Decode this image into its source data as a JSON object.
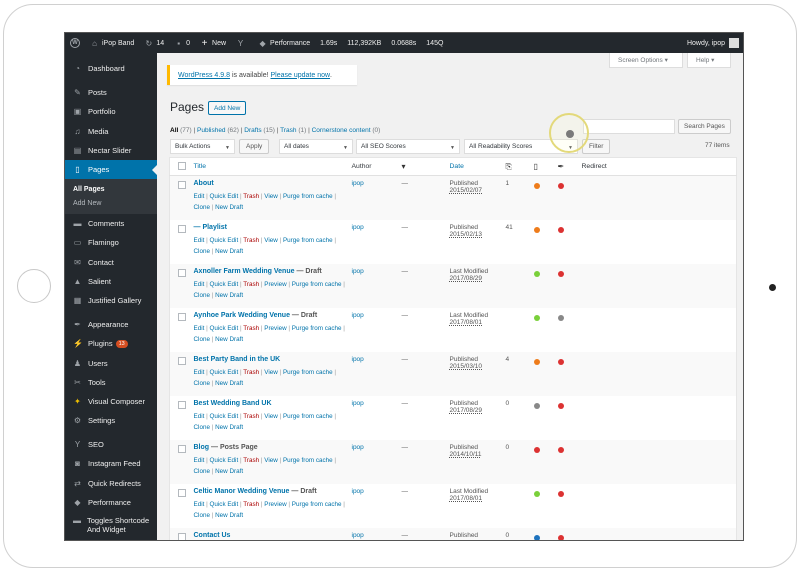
{
  "adminbar": {
    "site_name": "iPop Band",
    "updates_count": "14",
    "comments_count": "0",
    "new_label": "New",
    "performance_label": "Performance",
    "perf_time": "1.69s",
    "perf_memory": "112,392KB",
    "perf_query_time": "0.0688s",
    "perf_queries": "145Q",
    "howdy": "Howdy, ipop"
  },
  "sidebar": {
    "items": [
      {
        "label": "Dashboard",
        "icon": "dashboard-icon"
      },
      {
        "label": "Posts",
        "icon": "pin-icon"
      },
      {
        "label": "Portfolio",
        "icon": "portfolio-icon"
      },
      {
        "label": "Media",
        "icon": "media-icon"
      },
      {
        "label": "Nectar Slider",
        "icon": "slider-icon"
      },
      {
        "label": "Pages",
        "icon": "pages-icon"
      },
      {
        "label": "Comments",
        "icon": "comments-icon"
      },
      {
        "label": "Flamingo",
        "icon": "flamingo-icon"
      },
      {
        "label": "Contact",
        "icon": "mail-icon"
      },
      {
        "label": "Salient",
        "icon": "salient-icon"
      },
      {
        "label": "Justified Gallery",
        "icon": "gallery-icon"
      },
      {
        "label": "Appearance",
        "icon": "brush-icon"
      },
      {
        "label": "Plugins",
        "icon": "plugin-icon",
        "badge": "13"
      },
      {
        "label": "Users",
        "icon": "users-icon"
      },
      {
        "label": "Tools",
        "icon": "tools-icon"
      },
      {
        "label": "Visual Composer",
        "icon": "composer-icon"
      },
      {
        "label": "Settings",
        "icon": "settings-icon"
      },
      {
        "label": "SEO",
        "icon": "seo-icon"
      },
      {
        "label": "Instagram Feed",
        "icon": "instagram-icon"
      },
      {
        "label": "Quick Redirects",
        "icon": "redirect-icon"
      },
      {
        "label": "Performance",
        "icon": "performance-icon"
      },
      {
        "label": "Toggles Shortcode And Widget",
        "icon": "toggle-icon"
      }
    ],
    "submenu": [
      "All Pages",
      "Add New"
    ]
  },
  "screen_options": {
    "screen_label": "Screen Options ▾",
    "help_label": "Help ▾"
  },
  "notice": {
    "version_link": "WordPress 4.9.8",
    "middle": " is available! ",
    "update_link": "Please update now",
    "end": "."
  },
  "page": {
    "title": "Pages",
    "add_new": "Add New"
  },
  "filters": {
    "all": "All",
    "all_count": "(77)",
    "published": "Published",
    "published_count": "(62)",
    "drafts": "Drafts",
    "drafts_count": "(15)",
    "trash": "Trash",
    "trash_count": "(1)",
    "cornerstone": "Cornerstone content",
    "cornerstone_count": "(0)"
  },
  "toolbar": {
    "bulk_actions": "Bulk Actions",
    "apply": "Apply",
    "all_dates": "All dates",
    "seo_scores": "All SEO Scores",
    "readability_scores": "All Readability Scores",
    "filter": "Filter",
    "items_count": "77 items",
    "search_button": "Search Pages"
  },
  "table": {
    "headers": {
      "title": "Title",
      "author": "Author",
      "date": "Date",
      "redirect": "Redirect"
    },
    "rows": [
      {
        "title": "About",
        "state": "",
        "author": "ipop",
        "comments": "—",
        "date_status": "Published",
        "date": "2015/02/07",
        "links": "1",
        "seo_color": "#ee7c1b",
        "read_color": "#dc3232",
        "actions": [
          "Edit",
          "Quick Edit",
          "Trash",
          "View",
          "Purge from cache",
          "Clone",
          "New Draft"
        ]
      },
      {
        "title": "— Playlist",
        "state": "",
        "author": "ipop",
        "comments": "—",
        "date_status": "Published",
        "date": "2015/02/13",
        "links": "41",
        "seo_color": "#ee7c1b",
        "read_color": "#dc3232",
        "actions": [
          "Edit",
          "Quick Edit",
          "Trash",
          "View",
          "Purge from cache",
          "Clone",
          "New Draft"
        ]
      },
      {
        "title": "Axnoller Farm Wedding Venue",
        "state": " — Draft",
        "author": "ipop",
        "comments": "—",
        "date_status": "Last Modified",
        "date": "2017/08/29",
        "links": "",
        "seo_color": "#7ad03a",
        "read_color": "#dc3232",
        "actions": [
          "Edit",
          "Quick Edit",
          "Trash",
          "Preview",
          "Purge from cache",
          "Clone",
          "New Draft"
        ]
      },
      {
        "title": "Aynhoe Park Wedding Venue",
        "state": " — Draft",
        "author": "ipop",
        "comments": "—",
        "date_status": "Last Modified",
        "date": "2017/08/01",
        "links": "",
        "seo_color": "#7ad03a",
        "read_color": "#888888",
        "actions": [
          "Edit",
          "Quick Edit",
          "Trash",
          "Preview",
          "Purge from cache",
          "Clone",
          "New Draft"
        ]
      },
      {
        "title": "Best Party Band in the UK",
        "state": "",
        "author": "ipop",
        "comments": "—",
        "date_status": "Published",
        "date": "2015/03/10",
        "links": "4",
        "seo_color": "#ee7c1b",
        "read_color": "#dc3232",
        "actions": [
          "Edit",
          "Quick Edit",
          "Trash",
          "View",
          "Purge from cache",
          "Clone",
          "New Draft"
        ]
      },
      {
        "title": "Best Wedding Band UK",
        "state": "",
        "author": "ipop",
        "comments": "—",
        "date_status": "Published",
        "date": "2017/08/29",
        "links": "0",
        "seo_color": "#888888",
        "read_color": "#dc3232",
        "actions": [
          "Edit",
          "Quick Edit",
          "Trash",
          "View",
          "Purge from cache",
          "Clone",
          "New Draft"
        ]
      },
      {
        "title": "Blog",
        "state": " — Posts Page",
        "author": "ipop",
        "comments": "—",
        "date_status": "Published",
        "date": "2014/10/11",
        "links": "0",
        "seo_color": "#dc3232",
        "read_color": "#dc3232",
        "actions": [
          "Edit",
          "Quick Edit",
          "Trash",
          "View",
          "Purge from cache",
          "Clone",
          "New Draft"
        ]
      },
      {
        "title": "Celtic Manor Wedding Venue",
        "state": " — Draft",
        "author": "ipop",
        "comments": "—",
        "date_status": "Last Modified",
        "date": "2017/08/01",
        "links": "",
        "seo_color": "#7ad03a",
        "read_color": "#dc3232",
        "actions": [
          "Edit",
          "Quick Edit",
          "Trash",
          "Preview",
          "Purge from cache",
          "Clone",
          "New Draft"
        ]
      },
      {
        "title": "Contact Us",
        "state": "",
        "author": "ipop",
        "comments": "—",
        "date_status": "Published",
        "date": "",
        "links": "0",
        "seo_color": "#1e73be",
        "read_color": "#dc3232",
        "actions": []
      }
    ]
  }
}
